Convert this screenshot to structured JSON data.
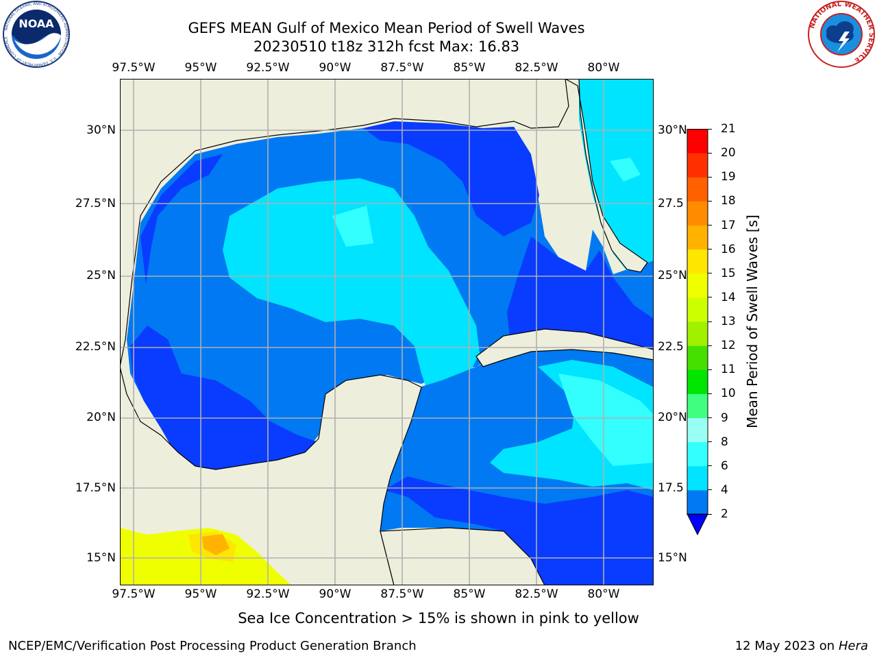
{
  "title_line1": "GEFS MEAN Gulf of Mexico Mean Period of Swell Waves",
  "title_line2": "20230510 t18z 312h fcst   Max: 16.83",
  "longitude_ticks": [
    "97.5°W",
    "95°W",
    "92.5°W",
    "90°W",
    "87.5°W",
    "85°W",
    "82.5°W",
    "80°W"
  ],
  "latitude_ticks_left": [
    "30°N",
    "27.5°N",
    "25°N",
    "22.5°N",
    "20°N",
    "17.5°N",
    "15°N"
  ],
  "latitude_ticks_right": [
    "30°N",
    "27.5",
    "25°N",
    "22.5",
    "20°N",
    "17.5",
    "15°N"
  ],
  "colorbar": {
    "label": "Mean Period of Swell Waves [s]",
    "ticks": [
      "2",
      "4",
      "6",
      "8",
      "9",
      "10",
      "11",
      "12",
      "13",
      "14",
      "15",
      "16",
      "17",
      "18",
      "19",
      "20",
      "21"
    ],
    "colors": [
      "#0a3cff",
      "#0079f2",
      "#00e4ff",
      "#33ffff",
      "#99fff5",
      "#40ff80",
      "#00e600",
      "#46e000",
      "#a0f000",
      "#ccff00",
      "#f0ff00",
      "#ffe600",
      "#ffb300",
      "#ff8c00",
      "#ff6000",
      "#ff3000",
      "#ff0000"
    ],
    "under_color": "#0000ff"
  },
  "land_color": "#eeeedc",
  "ice_caption": "Sea Ice Concentration > 15% is shown in pink to yellow",
  "footer_left": "NCEP/EMC/Verification Post Processing Product Generation Branch",
  "footer_date": "12 May 2023 on",
  "footer_host": "Hera",
  "logos": {
    "noaa_text": "NOAA",
    "noaa_ring": "NATIONAL OCEANIC AND ATMOSPHERIC ADMINISTRATION · U.S. DEPARTMENT OF COMMERCE",
    "nws_ring": "NATIONAL WEATHER SERVICE"
  }
}
